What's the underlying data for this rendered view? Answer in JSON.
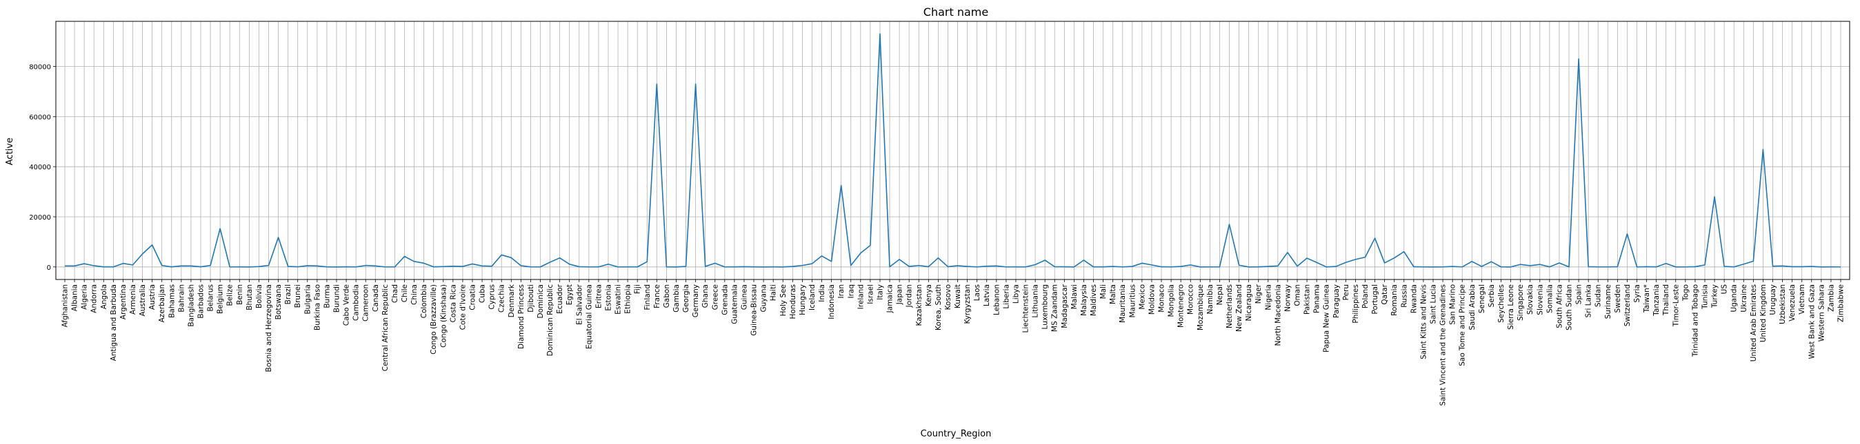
{
  "chart_data": {
    "type": "line",
    "title": "Chart name",
    "xlabel": "Country_Region",
    "ylabel": "Active",
    "ylim": [
      -5000,
      98000
    ],
    "yticks": [
      0,
      20000,
      40000,
      60000,
      80000
    ],
    "ytick_labels": [
      "0",
      "20000",
      "40000",
      "60000",
      "80000"
    ],
    "grid": true,
    "legend": "none",
    "line_color": "#1f77b4",
    "categories": [
      "Afghanistan",
      "Albania",
      "Algeria",
      "Andorra",
      "Angola",
      "Antigua and Barbuda",
      "Argentina",
      "Armenia",
      "Australia",
      "Austria",
      "Azerbaijan",
      "Bahamas",
      "Bahrain",
      "Bangladesh",
      "Barbados",
      "Belarus",
      "Belgium",
      "Belize",
      "Benin",
      "Bhutan",
      "Bolivia",
      "Bosnia and Herzegovina",
      "Botswana",
      "Brazil",
      "Brunei",
      "Bulgaria",
      "Burkina Faso",
      "Burma",
      "Burundi",
      "Cabo Verde",
      "Cambodia",
      "Cameroon",
      "Canada",
      "Central African Republic",
      "Chad",
      "Chile",
      "China",
      "Colombia",
      "Congo (Brazzaville)",
      "Congo (Kinshasa)",
      "Costa Rica",
      "Cote d'Ivoire",
      "Croatia",
      "Cuba",
      "Cyprus",
      "Czechia",
      "Denmark",
      "Diamond Princess",
      "Djibouti",
      "Dominica",
      "Dominican Republic",
      "Ecuador",
      "Egypt",
      "El Salvador",
      "Equatorial Guinea",
      "Eritrea",
      "Estonia",
      "Eswatini",
      "Ethiopia",
      "Fiji",
      "Finland",
      "France",
      "Gabon",
      "Gambia",
      "Georgia",
      "Germany",
      "Ghana",
      "Greece",
      "Grenada",
      "Guatemala",
      "Guinea",
      "Guinea-Bissau",
      "Guyana",
      "Haiti",
      "Holy See",
      "Honduras",
      "Hungary",
      "Iceland",
      "India",
      "Indonesia",
      "Iran",
      "Iraq",
      "Ireland",
      "Israel",
      "Italy",
      "Jamaica",
      "Japan",
      "Jordan",
      "Kazakhstan",
      "Kenya",
      "Korea, South",
      "Kosovo",
      "Kuwait",
      "Kyrgyzstan",
      "Laos",
      "Latvia",
      "Lebanon",
      "Liberia",
      "Libya",
      "Liechtenstein",
      "Lithuania",
      "Luxembourg",
      "MS Zaandam",
      "Madagascar",
      "Malawi",
      "Malaysia",
      "Maldives",
      "Mali",
      "Malta",
      "Mauritania",
      "Mauritius",
      "Mexico",
      "Moldova",
      "Monaco",
      "Mongolia",
      "Montenegro",
      "Morocco",
      "Mozambique",
      "Namibia",
      "Nepal",
      "Netherlands",
      "New Zealand",
      "Nicaragua",
      "Niger",
      "Nigeria",
      "North Macedonia",
      "Norway",
      "Oman",
      "Pakistan",
      "Panama",
      "Papua New Guinea",
      "Paraguay",
      "Peru",
      "Philippines",
      "Poland",
      "Portugal",
      "Qatar",
      "Romania",
      "Russia",
      "Rwanda",
      "Saint Kitts and Nevis",
      "Saint Lucia",
      "Saint Vincent and the Grenadines",
      "San Marino",
      "Sao Tome and Principe",
      "Saudi Arabia",
      "Senegal",
      "Serbia",
      "Seychelles",
      "Sierra Leone",
      "Singapore",
      "Slovakia",
      "Slovenia",
      "Somalia",
      "South Africa",
      "South Sudan",
      "Spain",
      "Sri Lanka",
      "Sudan",
      "Suriname",
      "Sweden",
      "Switzerland",
      "Syria",
      "Taiwan*",
      "Tanzania",
      "Thailand",
      "Timor-Leste",
      "Togo",
      "Trinidad and Tobago",
      "Tunisia",
      "Turkey",
      "US",
      "Uganda",
      "Ukraine",
      "United Arab Emirates",
      "United Kingdom",
      "Uruguay",
      "Uzbekistan",
      "Venezuela",
      "Vietnam",
      "West Bank and Gaza",
      "Western Sahara",
      "Zambia",
      "Zimbabwe"
    ],
    "values": [
      400,
      400,
      1300,
      500,
      20,
      20,
      1400,
      800,
      5200,
      8800,
      600,
      40,
      400,
      400,
      60,
      600,
      15300,
      10,
      20,
      5,
      150,
      600,
      11800,
      200,
      50,
      500,
      400,
      20,
      5,
      50,
      10,
      600,
      400,
      10,
      20,
      4200,
      2200,
      1500,
      40,
      150,
      300,
      200,
      1200,
      400,
      300,
      4800,
      3700,
      500,
      30,
      10,
      1900,
      3600,
      1100,
      100,
      15,
      20,
      1100,
      10,
      40,
      10,
      2100,
      73000,
      20,
      5,
      200,
      73000,
      200,
      1500,
      10,
      20,
      100,
      20,
      5,
      20,
      5,
      200,
      600,
      1300,
      4400,
      2200,
      32500,
      600,
      5500,
      8600,
      93000,
      50,
      3000,
      200,
      600,
      100,
      3600,
      100,
      500,
      200,
      10,
      300,
      400,
      10,
      20,
      10,
      900,
      2700,
      100,
      60,
      5,
      2700,
      30,
      40,
      200,
      10,
      200,
      1500,
      800,
      50,
      10,
      200,
      800,
      5,
      10,
      10,
      17000,
      700,
      5,
      40,
      200,
      400,
      5800,
      300,
      3500,
      1800,
      1,
      200,
      1800,
      3000,
      3900,
      11500,
      1600,
      3600,
      6100,
      100,
      10,
      5,
      10,
      200,
      10,
      2200,
      200,
      2100,
      10,
      5,
      1000,
      500,
      1000,
      30,
      1600,
      10,
      83000,
      100,
      10,
      10,
      100,
      13200,
      10,
      100,
      20,
      1400,
      1,
      10,
      100,
      800,
      28000,
      200,
      20,
      1100,
      2300,
      46900,
      300,
      400,
      100,
      100,
      200,
      5,
      30,
      10
    ]
  }
}
